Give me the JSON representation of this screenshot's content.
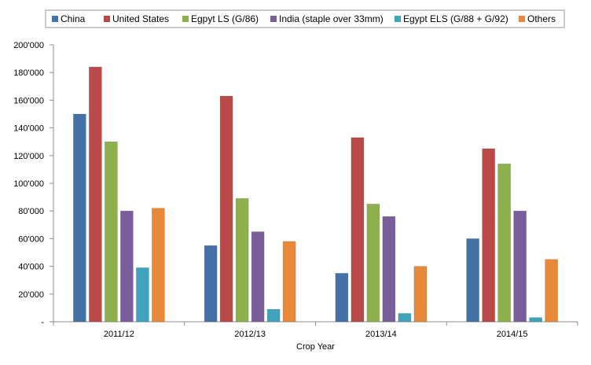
{
  "chart_data": {
    "type": "bar",
    "title": "",
    "xlabel": "Crop Year",
    "ylabel": "",
    "categories": [
      "2011/12",
      "2012/13",
      "2013/14",
      "2014/15"
    ],
    "ylim": [
      0,
      200000
    ],
    "y_ticks": [
      0,
      20000,
      40000,
      60000,
      80000,
      100000,
      120000,
      140000,
      160000,
      180000,
      200000
    ],
    "y_tick_labels": [
      "-",
      "20'000",
      "40'000",
      "60'000",
      "80'000",
      "100'000",
      "120'000",
      "140'000",
      "160'000",
      "180'000",
      "200'000"
    ],
    "grid": false,
    "legend_position": "top",
    "series": [
      {
        "name": "China",
        "color": "#4472A8",
        "values": [
          150000,
          55000,
          35000,
          60000
        ]
      },
      {
        "name": "United States",
        "color": "#B94A48",
        "values": [
          184000,
          163000,
          133000,
          125000
        ]
      },
      {
        "name": "Egpyt LS (G/86)",
        "color": "#8EB04E",
        "values": [
          130000,
          89000,
          85000,
          114000
        ]
      },
      {
        "name": "India (staple over 33mm)",
        "color": "#7A5E9C",
        "values": [
          80000,
          65000,
          76000,
          80000
        ]
      },
      {
        "name": "Egypt ELS (G/88 + G/92)",
        "color": "#41A2BC",
        "values": [
          39000,
          9000,
          6000,
          3000
        ]
      },
      {
        "name": "Others",
        "color": "#E8893A",
        "values": [
          82000,
          58000,
          40000,
          45000
        ]
      }
    ]
  }
}
